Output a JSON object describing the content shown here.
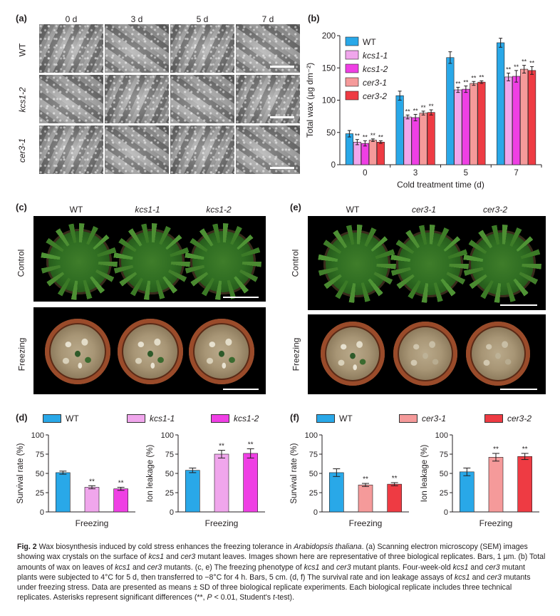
{
  "panels": {
    "a": {
      "label": "(a)",
      "columns": [
        "0 d",
        "3 d",
        "5 d",
        "7 d"
      ],
      "rows": [
        "WT",
        "kcs1-2",
        "cer3-1"
      ]
    },
    "b": {
      "label": "(b)",
      "legend": [
        "WT",
        "kcs1-1",
        "kcs1-2",
        "cer3-1",
        "cer3-2"
      ],
      "sig": "**"
    },
    "c": {
      "label": "(c)",
      "columns": [
        "WT",
        "kcs1-1",
        "kcs1-2"
      ],
      "rows": [
        "Control",
        "Freezing"
      ]
    },
    "e": {
      "label": "(e)",
      "columns": [
        "WT",
        "cer3-1",
        "cer3-2"
      ],
      "rows": [
        "Control",
        "Freezing"
      ]
    },
    "d": {
      "label": "(d)",
      "legend": [
        "WT",
        "kcs1-1",
        "kcs1-2"
      ]
    },
    "f": {
      "label": "(f)",
      "legend": [
        "WT",
        "cer3-1",
        "cer3-2"
      ]
    }
  },
  "colors": {
    "WT": "#29a8e8",
    "kcs1-1": "#f0a6ec",
    "kcs1-2": "#ef3fe4",
    "cer3-1": "#f59a9a",
    "cer3-2": "#ee3b43"
  },
  "chart_data": [
    {
      "id": "b",
      "type": "bar",
      "title": "",
      "xlabel": "Cold treatment time (d)",
      "ylabel": "Total wax (µg dm⁻²)",
      "categories": [
        "0",
        "3",
        "5",
        "7"
      ],
      "ylim": [
        0,
        200
      ],
      "yticks": [
        0,
        50,
        100,
        150,
        200
      ],
      "series": [
        {
          "name": "WT",
          "values": [
            48,
            107,
            166,
            189
          ],
          "errors": [
            5,
            7,
            9,
            7
          ],
          "sig": [
            "",
            "",
            "",
            ""
          ]
        },
        {
          "name": "kcs1-1",
          "values": [
            35,
            74,
            116,
            136
          ],
          "errors": [
            4,
            3,
            4,
            6
          ],
          "sig": [
            "**",
            "**",
            "**",
            "**"
          ]
        },
        {
          "name": "kcs1-2",
          "values": [
            33,
            73,
            117,
            137
          ],
          "errors": [
            4,
            5,
            5,
            9
          ],
          "sig": [
            "**",
            "**",
            "**",
            "**"
          ]
        },
        {
          "name": "cer3-1",
          "values": [
            38,
            80,
            126,
            148
          ],
          "errors": [
            2,
            3,
            3,
            6
          ],
          "sig": [
            "**",
            "**",
            "**",
            "**"
          ]
        },
        {
          "name": "cer3-2",
          "values": [
            35,
            81,
            128,
            146
          ],
          "errors": [
            2,
            4,
            2,
            6
          ],
          "sig": [
            "**",
            "**",
            "**",
            "**"
          ]
        }
      ]
    },
    {
      "id": "d1",
      "type": "bar",
      "title": "",
      "xlabel": "Freezing",
      "ylabel": "Survival rate (%)",
      "categories": [
        "WT",
        "kcs1-1",
        "kcs1-2"
      ],
      "ylim": [
        0,
        100
      ],
      "yticks": [
        0,
        25,
        50,
        75,
        100
      ],
      "series": [
        {
          "name": "Survival rate",
          "values": [
            51,
            32,
            30
          ],
          "errors": [
            2,
            2,
            2
          ],
          "sig": [
            "",
            "**",
            "**"
          ]
        }
      ]
    },
    {
      "id": "d2",
      "type": "bar",
      "title": "",
      "xlabel": "Freezing",
      "ylabel": "Ion leakage (%)",
      "categories": [
        "WT",
        "kcs1-1",
        "kcs1-2"
      ],
      "ylim": [
        0,
        100
      ],
      "yticks": [
        0,
        25,
        50,
        75,
        100
      ],
      "series": [
        {
          "name": "Ion leakage",
          "values": [
            54,
            75,
            76
          ],
          "errors": [
            3,
            5,
            6
          ],
          "sig": [
            "",
            "**",
            "**"
          ]
        }
      ]
    },
    {
      "id": "f1",
      "type": "bar",
      "title": "",
      "xlabel": "Freezing",
      "ylabel": "Survival rate (%)",
      "categories": [
        "WT",
        "cer3-1",
        "cer3-2"
      ],
      "ylim": [
        0,
        100
      ],
      "yticks": [
        0,
        25,
        50,
        75,
        100
      ],
      "series": [
        {
          "name": "Survival rate",
          "values": [
            51,
            35,
            36
          ],
          "errors": [
            5,
            2,
            2
          ],
          "sig": [
            "",
            "**",
            "**"
          ]
        }
      ]
    },
    {
      "id": "f2",
      "type": "bar",
      "title": "",
      "xlabel": "Freezing",
      "ylabel": "Ion leakage (%)",
      "categories": [
        "WT",
        "cer3-1",
        "cer3-2"
      ],
      "ylim": [
        0,
        100
      ],
      "yticks": [
        0,
        25,
        50,
        75,
        100
      ],
      "series": [
        {
          "name": "Ion leakage",
          "values": [
            52,
            71,
            72
          ],
          "errors": [
            5,
            5,
            4
          ],
          "sig": [
            "",
            "**",
            "**"
          ]
        }
      ]
    }
  ],
  "caption": {
    "fig": "Fig. 2",
    "s1": " Wax biosynthesis induced by cold stress enhances the freezing tolerance in ",
    "species": "Arabidopsis thaliana",
    "s2": ". (a) Scanning electron microscopy (SEM) images showing wax crystals on the surface of ",
    "g1": "kcs1",
    "s3": " and ",
    "g2": "cer3",
    "s4": " mutant leaves. Images shown here are representative of three biological replicates. Bars, 1 µm. (b) Total amounts of wax on leaves of ",
    "g3": "kcs1",
    "s5": " and ",
    "g4": "cer3",
    "s6": " mutants. (c, e) The freezing phenotype of ",
    "g5": "kcs1",
    "s7": " and ",
    "g6": "cer3",
    "s8": " mutant plants. Four-week-old ",
    "g7": "kcs1",
    "s9": " and ",
    "g8": "cer3",
    "s10": " mutant plants were subjected to 4°C for 5 d, then transferred to −8°C for 4 h. Bars, 5 cm. (d, f) The survival rate and ion leakage assays of ",
    "g9": "kcs1",
    "s11": " and ",
    "g10": "cer3",
    "s12": " mutants under freezing stress. Data are presented as means ± SD of three biological replicate experiments. Each biological replicate includes three technical replicates. Asterisks represent significant differences (**, ",
    "pval": "P",
    "s13": " < 0.01, Student's ",
    "tstat": "t",
    "s14": "-test)."
  }
}
